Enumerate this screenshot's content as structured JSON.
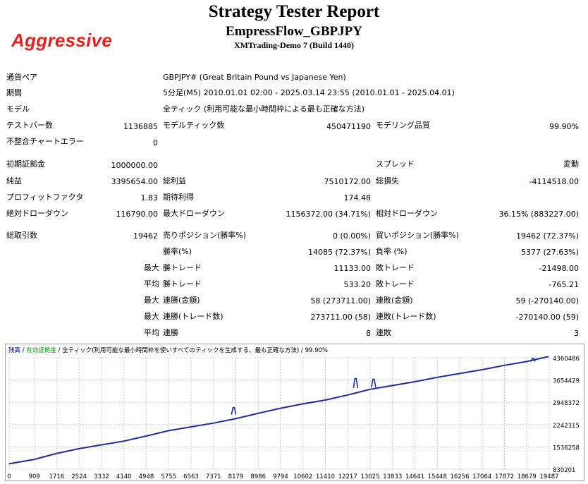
{
  "header": {
    "title": "Strategy Tester Report",
    "ea_name": "EmpressFlow_GBPJPY",
    "server": "XMTrading-Demo 7 (Build 1440)",
    "tag": "Aggressive",
    "tag_color": "#e8201c"
  },
  "report": {
    "symbol_label": "通貨ペア",
    "symbol_value": "GBPJPY# (Great Britain Pound vs Japanese Yen)",
    "period_label": "期間",
    "period_value": "5分足(M5) 2010.01.01 02:00 - 2025.03.14 23:55 (2010.01.01 - 2025.04.01)",
    "model_label": "モデル",
    "model_value": "全ティック (利用可能な最小時間枠による最も正確な方法)",
    "bars_label": "テストバー数",
    "bars_value": "1136885",
    "ticks_label": "モデルティック数",
    "ticks_value": "450471190",
    "quality_label": "モデリング品質",
    "quality_value": "99.90%",
    "mismatch_label": "不整合チャートエラー",
    "mismatch_value": "0",
    "deposit_label": "初期証拠金",
    "deposit_value": "1000000.00",
    "spread_label": "スプレッド",
    "spread_value": "変動",
    "net_label": "純益",
    "net_value": "3395654.00",
    "gross_profit_label": "総利益",
    "gross_profit_value": "7510172.00",
    "gross_loss_label": "総損失",
    "gross_loss_value": "-4114518.00",
    "pf_label": "プロフィットファクタ",
    "pf_value": "1.83",
    "payoff_label": "期待利得",
    "payoff_value": "174.48",
    "abs_dd_label": "絶対ドローダウン",
    "abs_dd_value": "116790.00",
    "max_dd_label": "最大ドローダウン",
    "max_dd_value": "1156372.00 (34.71%)",
    "rel_dd_label": "相対ドローダウン",
    "rel_dd_value": "36.15% (883227.00)",
    "total_trades_label": "総取引数",
    "total_trades_value": "19462",
    "short_label": "売りポジション(勝率%)",
    "short_value": "0 (0.00%)",
    "long_label": "買いポジション(勝率%)",
    "long_value": "19462 (72.37%)",
    "win_label": "勝率(%)",
    "win_value": "14085 (72.37%)",
    "loss_label": "負率 (%)",
    "loss_value": "5377 (27.63%)",
    "largest_label": "最大",
    "largest_win_label": "勝トレード",
    "largest_win_value": "11133.00",
    "largest_loss_label": "敗トレード",
    "largest_loss_value": "-21498.00",
    "average_label": "平均",
    "average_win_label": "勝トレード",
    "average_win_value": "533.20",
    "average_loss_label": "敗トレード",
    "average_loss_value": "-765.21",
    "max1_label": "最大",
    "cons_wins_money_label": "連勝(金額)",
    "cons_wins_money_value": "58 (273711.00)",
    "cons_losses_money_label": "連敗(金額)",
    "cons_losses_money_value": "59 (-270140.00)",
    "max2_label": "最大",
    "cons_wins_count_label": "連勝(トレード数)",
    "cons_wins_count_value": "273711.00 (58)",
    "cons_losses_count_label": "連敗(トレード数)",
    "cons_losses_count_value": "-270140.00 (59)",
    "avg2_label": "平均",
    "avg_cons_wins_label": "連勝",
    "avg_cons_wins_value": "8",
    "avg_cons_losses_label": "連敗",
    "avg_cons_losses_value": "3"
  },
  "graph": {
    "legend_balance": "残高",
    "legend_sep1": " / ",
    "legend_equity": "有効証拠金",
    "legend_sep2": " / ",
    "legend_model": "全ティック(利用可能な最小時間枠を使いすべてのティックを生成する、最も正確な方法)",
    "legend_sep3": " / ",
    "legend_quality": "99.90%",
    "balance_color": "#0000b4",
    "equity_color": "#00a000",
    "line_color": "#1e2d96",
    "y_labels": [
      "4360486",
      "3654429",
      "2948372",
      "2242315",
      "1536258",
      "830201"
    ],
    "x_labels": [
      "0",
      "909",
      "1716",
      "2524",
      "3332",
      "4140",
      "4948",
      "5755",
      "6563",
      "7371",
      "8179",
      "8986",
      "9794",
      "10602",
      "11410",
      "12217",
      "13025",
      "13833",
      "14641",
      "15448",
      "16256",
      "17064",
      "17872",
      "18679",
      "19487"
    ]
  },
  "chart_data": {
    "type": "line",
    "ylim": [
      830201,
      4360486
    ],
    "xlim": [
      0,
      19487
    ],
    "series": [
      {
        "x": [
          0,
          909,
          1716,
          2524,
          3332,
          4140,
          4948,
          5755,
          6563,
          7371,
          8179,
          8986,
          9794,
          10602,
          11410,
          12217,
          13025,
          13833,
          14641,
          15448,
          16256,
          17064,
          17872,
          18679,
          19462
        ],
        "values": [
          1000000,
          1140000,
          1330000,
          1480000,
          1600000,
          1720000,
          1880000,
          2050000,
          2170000,
          2290000,
          2430000,
          2600000,
          2760000,
          2900000,
          3020000,
          3180000,
          3360000,
          3480000,
          3600000,
          3740000,
          3860000,
          3980000,
          4120000,
          4240000,
          4395654
        ]
      }
    ],
    "spikes": [
      {
        "x": 8100,
        "top": 2780000,
        "base": 2560000
      },
      {
        "x": 12500,
        "top": 3700000,
        "base": 3400000
      },
      {
        "x": 13150,
        "top": 3680000,
        "base": 3420000
      },
      {
        "x": 18900,
        "top": 4340000,
        "base": 4240000
      }
    ]
  }
}
